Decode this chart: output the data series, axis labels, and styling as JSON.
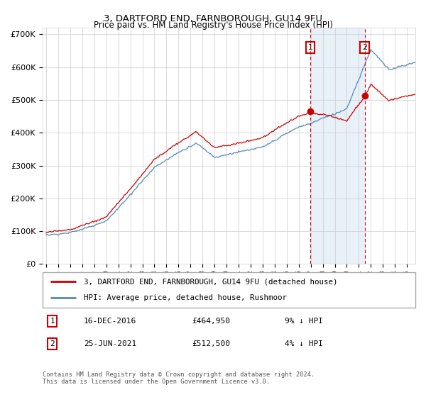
{
  "title": "3, DARTFORD END, FARNBOROUGH, GU14 9FU",
  "subtitle": "Price paid vs. HM Land Registry's House Price Index (HPI)",
  "footer": "Contains HM Land Registry data © Crown copyright and database right 2024.\nThis data is licensed under the Open Government Licence v3.0.",
  "legend_line1": "3, DARTFORD END, FARNBOROUGH, GU14 9FU (detached house)",
  "legend_line2": "HPI: Average price, detached house, Rushmoor",
  "sale1_date": "16-DEC-2016",
  "sale1_price": "£464,950",
  "sale1_hpi": "9% ↓ HPI",
  "sale1_year": 2016.96,
  "sale1_val": 464950,
  "sale2_date": "25-JUN-2021",
  "sale2_price": "£512,500",
  "sale2_hpi": "4% ↓ HPI",
  "sale2_year": 2021.49,
  "sale2_val": 512500,
  "red_color": "#cc0000",
  "blue_color": "#5588bb",
  "shaded_color": "#ddeeff",
  "ylim": [
    0,
    720000
  ],
  "yticks": [
    0,
    100000,
    200000,
    300000,
    400000,
    500000,
    600000,
    700000
  ],
  "xstart": 1995,
  "xend": 2025
}
